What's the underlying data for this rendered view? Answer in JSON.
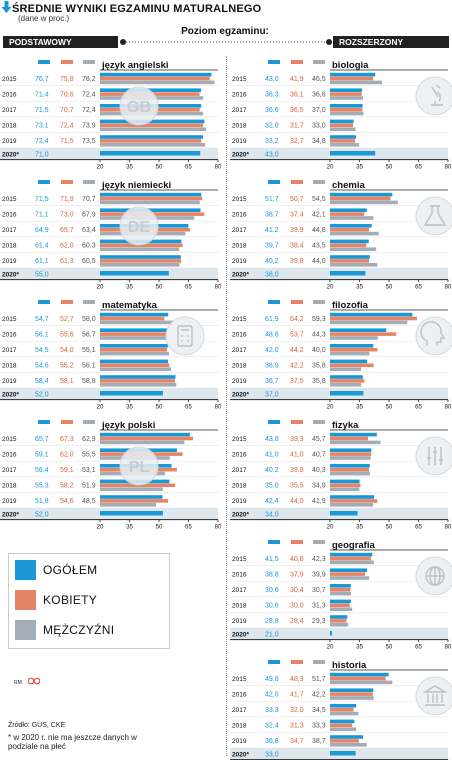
{
  "title": "ŚREDNIE WYNIKI EGZAMINU MATURALNEGO",
  "subtitle": "(dane w proc.)",
  "level_label": "Poziom egzaminu:",
  "basic_label": "PODSTAWOWY",
  "advanced_label": "ROZSZERZONY",
  "legend": [
    {
      "label": "OGÓŁEM",
      "color": "#1a98d6"
    },
    {
      "label": "KOBIETY",
      "color": "#e58467"
    },
    {
      "label": "MĘŻCZYŹNI",
      "color": "#a3adb6"
    }
  ],
  "source": "Źródło: GUS, CKE",
  "footnote": "* w 2020 r. nie ma jeszcze danych w podziale na płeć",
  "logo_text": "RM",
  "colors": {
    "total": "#1a98d6",
    "female": "#e58467",
    "male": "#a3adb6",
    "band": "#dfe7ee",
    "axis": "#222"
  },
  "chart_data": [
    {
      "type": "bar",
      "section": "basic",
      "title": "język angielski",
      "badge": "GB",
      "icon": "text-badge",
      "years": [
        "2015",
        "2016",
        "2017",
        "2018",
        "2019"
      ],
      "year_2020_label": "2020*",
      "total": [
        76.7,
        71.4,
        71.5,
        73.1,
        72.4
      ],
      "female": [
        75.8,
        70.6,
        70.7,
        72.4,
        71.5
      ],
      "male": [
        78.2,
        72.4,
        72.4,
        73.9,
        73.5
      ],
      "total_2020": 71.0,
      "xticks": [
        20,
        35,
        50,
        65,
        80
      ],
      "xlim": [
        20,
        80
      ]
    },
    {
      "type": "bar",
      "section": "basic",
      "title": "język niemiecki",
      "badge": "DE",
      "icon": "text-badge",
      "years": [
        "2015",
        "2016",
        "2017",
        "2018",
        "2019"
      ],
      "year_2020_label": "2020*",
      "total": [
        71.5,
        71.1,
        64.9,
        61.4,
        61.1
      ],
      "female": [
        71.9,
        73.0,
        65.7,
        62.0,
        61.3
      ],
      "male": [
        70.7,
        67.9,
        63.4,
        60.3,
        60.5
      ],
      "total_2020": 55.0,
      "xticks": [
        20,
        35,
        50,
        65,
        80
      ],
      "xlim": [
        20,
        80
      ]
    },
    {
      "type": "bar",
      "section": "basic",
      "title": "matematyka",
      "badge": "",
      "icon": "calculator-icon",
      "years": [
        "2015",
        "2016",
        "2017",
        "2018",
        "2019"
      ],
      "year_2020_label": "2020*",
      "total": [
        54.7,
        56.1,
        54.5,
        54.6,
        58.4
      ],
      "female": [
        52.7,
        55.6,
        54.0,
        55.2,
        58.1
      ],
      "male": [
        58.0,
        56.7,
        55.1,
        56.1,
        58.8
      ],
      "total_2020": 52.0,
      "xticks": [
        20,
        35,
        50,
        65,
        80
      ],
      "xlim": [
        20,
        80
      ]
    },
    {
      "type": "bar",
      "section": "basic",
      "title": "język polski",
      "badge": "PL",
      "icon": "text-badge",
      "years": [
        "2015",
        "2016",
        "2017",
        "2018",
        "2019"
      ],
      "year_2020_label": "2020*",
      "total": [
        65.7,
        59.1,
        56.4,
        55.3,
        51.8
      ],
      "female": [
        67.3,
        62.0,
        59.1,
        58.2,
        54.6
      ],
      "male": [
        62.9,
        55.5,
        53.1,
        51.9,
        48.5
      ],
      "total_2020": 52.0,
      "xticks": [
        20,
        35,
        50,
        65,
        80
      ],
      "xlim": [
        20,
        80
      ]
    },
    {
      "type": "bar",
      "section": "advanced",
      "title": "biologia",
      "badge": "",
      "icon": "microscope-icon",
      "years": [
        "2015",
        "2016",
        "2017",
        "2018",
        "2019"
      ],
      "year_2020_label": "2020*",
      "total": [
        43.0,
        36.3,
        36.6,
        32.0,
        33.2
      ],
      "female": [
        41.9,
        36.1,
        36.5,
        31.7,
        32.7
      ],
      "male": [
        46.5,
        36.8,
        37.0,
        33.0,
        34.8
      ],
      "total_2020": 43.0,
      "xticks": [
        20,
        35,
        50,
        65,
        80
      ],
      "xlim": [
        20,
        80
      ]
    },
    {
      "type": "bar",
      "section": "advanced",
      "title": "chemia",
      "badge": "",
      "icon": "flask-icon",
      "years": [
        "2015",
        "2016",
        "2017",
        "2018",
        "2019"
      ],
      "year_2020_label": "2020*",
      "total": [
        51.7,
        38.7,
        41.2,
        39.7,
        40.2
      ],
      "female": [
        50.7,
        37.4,
        39.9,
        38.4,
        39.8
      ],
      "male": [
        54.5,
        42.1,
        44.8,
        43.5,
        44.0
      ],
      "total_2020": 38.0,
      "xticks": [
        20,
        35,
        50,
        65,
        80
      ],
      "xlim": [
        20,
        80
      ]
    },
    {
      "type": "bar",
      "section": "advanced",
      "title": "filozofia",
      "badge": "",
      "icon": "head-icon",
      "years": [
        "2015",
        "2016",
        "2017",
        "2018",
        "2019"
      ],
      "year_2020_label": "2020*",
      "total": [
        61.9,
        48.6,
        42.0,
        38.9,
        36.7
      ],
      "female": [
        64.2,
        53.7,
        44.2,
        42.2,
        37.5
      ],
      "male": [
        59.3,
        44.3,
        40.0,
        35.8,
        35.8
      ],
      "total_2020": 37.0,
      "xticks": [
        20,
        35,
        50,
        65,
        80
      ],
      "xlim": [
        20,
        80
      ]
    },
    {
      "type": "bar",
      "section": "advanced",
      "title": "fizyka",
      "badge": "",
      "icon": "sliders-icon",
      "years": [
        "2015",
        "2016",
        "2017",
        "2018",
        "2019"
      ],
      "year_2020_label": "2020*",
      "total": [
        43.8,
        41.0,
        40.2,
        35.0,
        42.4
      ],
      "female": [
        39.3,
        41.0,
        39.8,
        35.5,
        44.0
      ],
      "male": [
        45.7,
        40.7,
        40.3,
        34.9,
        41.9
      ],
      "total_2020": 34.0,
      "xticks": [
        20,
        35,
        50,
        65,
        80
      ],
      "xlim": [
        20,
        80
      ]
    },
    {
      "type": "bar",
      "section": "advanced",
      "title": "geografia",
      "badge": "",
      "icon": "globe-icon",
      "years": [
        "2015",
        "2016",
        "2017",
        "2018",
        "2019"
      ],
      "year_2020_label": "2020*",
      "total": [
        41.5,
        38.8,
        30.6,
        30.6,
        28.8
      ],
      "female": [
        40.8,
        37.9,
        30.4,
        30.0,
        28.4
      ],
      "male": [
        42.3,
        39.9,
        30.7,
        31.3,
        29.3
      ],
      "total_2020": 21.0,
      "xticks": [
        20,
        35,
        50,
        65,
        80
      ],
      "xlim": [
        20,
        80
      ]
    },
    {
      "type": "bar",
      "section": "advanced",
      "title": "historia",
      "badge": "",
      "icon": "museum-icon",
      "years": [
        "2015",
        "2016",
        "2017",
        "2018",
        "2019"
      ],
      "year_2020_label": "2020*",
      "total": [
        49.8,
        42.0,
        33.3,
        32.4,
        36.8
      ],
      "female": [
        48.3,
        41.7,
        32.0,
        31.3,
        34.7
      ],
      "male": [
        51.7,
        42.2,
        34.5,
        33.3,
        38.7
      ],
      "total_2020": 33.0,
      "xticks": [
        20,
        35,
        50,
        65,
        80
      ],
      "xlim": [
        20,
        80
      ]
    }
  ]
}
